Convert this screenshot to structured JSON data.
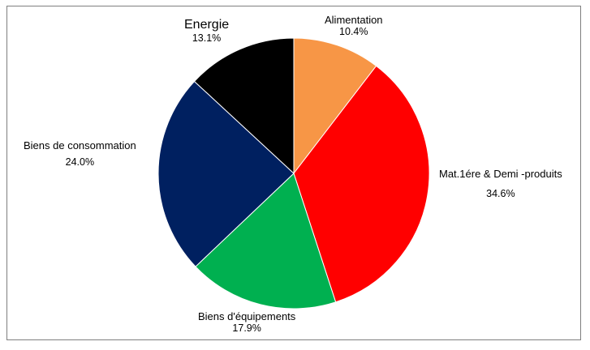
{
  "chart_data": {
    "type": "pie",
    "title": "",
    "slices": [
      {
        "label": "Alimentation",
        "value": 10.4,
        "value_label": "10.4%",
        "color": "#F79646"
      },
      {
        "label": "Mat.1ére & Demi -produits",
        "value": 34.6,
        "value_label": "34.6%",
        "color": "#FF0000"
      },
      {
        "label": "Biens d'équipements",
        "value": 17.9,
        "value_label": "17.9%",
        "color": "#00B050"
      },
      {
        "label": "Biens de consommation",
        "value": 24.0,
        "value_label": "24.0%",
        "color": "#002060"
      },
      {
        "label": "Energie",
        "value": 13.1,
        "value_label": "13.1%",
        "color": "#000000"
      }
    ],
    "start": "12 o'clock",
    "direction": "clockwise",
    "legend": "none"
  }
}
